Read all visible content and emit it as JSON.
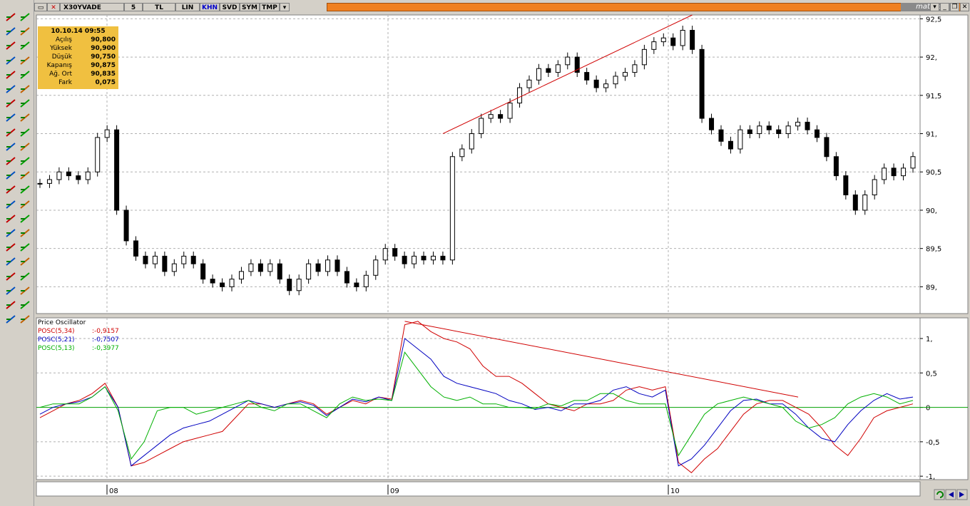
{
  "toolbar_top": {
    "symbol": "X30YVADE",
    "period": "5",
    "currency": "TL",
    "scale": "LIN",
    "buttons": [
      "KHN",
      "SVD",
      "SYM",
      "TMP"
    ],
    "brand": "matriks"
  },
  "info_box": {
    "datetime": "10.10.14 09:55",
    "rows": [
      {
        "label": "Açılış",
        "value": "90,800"
      },
      {
        "label": "Yüksek",
        "value": "90,900"
      },
      {
        "label": "Düşük",
        "value": "90,750"
      },
      {
        "label": "Kapanış",
        "value": "90,875"
      },
      {
        "label": "Ağ. Ort",
        "value": "90,835"
      },
      {
        "label": "Fark",
        "value": "0,075"
      }
    ]
  },
  "oscillator": {
    "title": "Price Oscillator",
    "series": [
      {
        "name": "POSC(5,34)",
        "value": ":-0,9157",
        "color": "#d00000"
      },
      {
        "name": "POSC(5,21)",
        "value": ":-0,7507",
        "color": "#0000c0"
      },
      {
        "name": "POSC(5,13)",
        "value": ":-0,3977",
        "color": "#00b000"
      }
    ]
  },
  "chart_data": [
    {
      "type": "candlestick",
      "y_ticks": [
        "92,5",
        "92,",
        "91,5",
        "91,",
        "90,5",
        "90,",
        "89,5",
        "89,"
      ],
      "x_ticks": [
        "08",
        "09",
        "10"
      ],
      "ylim": [
        88.65,
        92.55
      ],
      "grid": true,
      "closes": [
        90.35,
        90.4,
        90.5,
        90.45,
        90.4,
        90.5,
        90.95,
        91.05,
        90.0,
        89.6,
        89.4,
        89.3,
        89.4,
        89.2,
        89.3,
        89.4,
        89.3,
        89.1,
        89.05,
        89.0,
        89.1,
        89.2,
        89.3,
        89.2,
        89.3,
        89.1,
        88.95,
        89.1,
        89.3,
        89.2,
        89.35,
        89.2,
        89.05,
        89.0,
        89.15,
        89.35,
        89.5,
        89.4,
        89.3,
        89.4,
        89.35,
        89.4,
        89.35,
        90.7,
        90.8,
        91.0,
        91.2,
        91.25,
        91.2,
        91.4,
        91.6,
        91.7,
        91.85,
        91.8,
        91.9,
        92.0,
        91.8,
        91.7,
        91.6,
        91.65,
        91.75,
        91.8,
        91.9,
        92.1,
        92.2,
        92.25,
        92.15,
        92.35,
        92.1,
        91.2,
        91.05,
        90.9,
        90.8,
        91.05,
        91.0,
        91.1,
        91.05,
        91.0,
        91.1,
        91.15,
        91.05,
        90.95,
        90.7,
        90.45,
        90.2,
        90.0,
        90.2,
        90.4,
        90.55,
        90.45,
        90.55,
        90.7
      ],
      "trendline": {
        "from": [
          42,
          91.0
        ],
        "to": [
          68,
          92.55
        ]
      }
    },
    {
      "type": "line",
      "y_ticks": [
        "1,",
        "0,5",
        "0",
        "-0,5",
        "-1,"
      ],
      "ylim": [
        -1.05,
        1.3
      ],
      "series": [
        {
          "name": "POSC(5,34)",
          "values": [
            -0.15,
            -0.05,
            0.05,
            0.1,
            0.2,
            0.35,
            0.0,
            -0.85,
            -0.8,
            -0.7,
            -0.6,
            -0.5,
            -0.45,
            -0.4,
            -0.35,
            -0.15,
            0.05,
            0.05,
            0.0,
            0.05,
            0.1,
            0.05,
            -0.1,
            0.0,
            0.1,
            0.05,
            0.15,
            0.12,
            1.2,
            1.25,
            1.1,
            1.0,
            0.95,
            0.85,
            0.6,
            0.45,
            0.45,
            0.35,
            0.2,
            0.05,
            0.0,
            -0.05,
            0.05,
            0.05,
            0.1,
            0.25,
            0.3,
            0.25,
            0.3,
            -0.8,
            -0.95,
            -0.75,
            -0.6,
            -0.35,
            -0.1,
            0.05,
            0.1,
            0.1,
            0.0,
            -0.1,
            -0.3,
            -0.55,
            -0.7,
            -0.45,
            -0.15,
            -0.05,
            0.0,
            0.05
          ]
        },
        {
          "name": "POSC(5,21)",
          "values": [
            -0.1,
            0.0,
            0.05,
            0.08,
            0.15,
            0.3,
            0.0,
            -0.85,
            -0.7,
            -0.55,
            -0.4,
            -0.3,
            -0.25,
            -0.2,
            -0.1,
            0.0,
            0.1,
            0.05,
            0.0,
            0.05,
            0.08,
            0.03,
            -0.12,
            0.0,
            0.12,
            0.08,
            0.15,
            0.1,
            1.0,
            0.85,
            0.7,
            0.45,
            0.35,
            0.3,
            0.25,
            0.2,
            0.1,
            0.05,
            -0.03,
            0.0,
            -0.05,
            0.05,
            0.05,
            0.1,
            0.25,
            0.3,
            0.2,
            0.15,
            0.25,
            -0.85,
            -0.75,
            -0.55,
            -0.3,
            -0.05,
            0.1,
            0.12,
            0.05,
            0.05,
            -0.1,
            -0.3,
            -0.45,
            -0.5,
            -0.25,
            -0.05,
            0.1,
            0.2,
            0.12,
            0.15
          ]
        },
        {
          "name": "POSC(5,13)",
          "values": [
            0.0,
            0.05,
            0.05,
            0.05,
            0.15,
            0.3,
            -0.05,
            -0.75,
            -0.5,
            -0.05,
            0.0,
            0.0,
            -0.1,
            -0.05,
            0.0,
            0.05,
            0.1,
            0.0,
            -0.05,
            0.05,
            0.05,
            -0.05,
            -0.15,
            0.05,
            0.15,
            0.1,
            0.12,
            0.1,
            0.8,
            0.55,
            0.3,
            0.15,
            0.1,
            0.15,
            0.05,
            0.05,
            0.0,
            0.0,
            -0.02,
            0.05,
            0.02,
            0.1,
            0.1,
            0.2,
            0.2,
            0.1,
            0.05,
            0.05,
            0.05,
            -0.7,
            -0.4,
            -0.1,
            0.05,
            0.1,
            0.15,
            0.1,
            0.05,
            0.0,
            -0.2,
            -0.3,
            -0.25,
            -0.15,
            0.05,
            0.15,
            0.2,
            0.15,
            0.05,
            0.1
          ]
        }
      ],
      "trendline": {
        "from": [
          28,
          1.25
        ],
        "to": [
          56,
          0.15
        ]
      }
    }
  ]
}
